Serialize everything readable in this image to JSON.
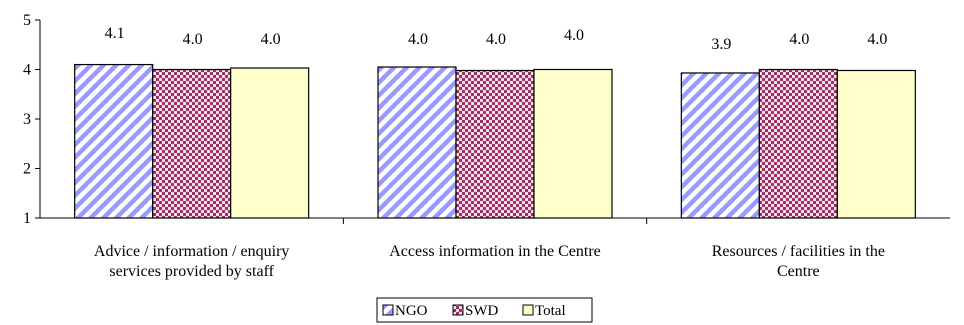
{
  "chart_data": {
    "type": "bar",
    "title": "",
    "xlabel": "",
    "ylabel": "",
    "ylim": [
      1,
      5
    ],
    "yticks": [
      "1",
      "2",
      "3",
      "4",
      "5"
    ],
    "grid": false,
    "legend_position": "bottom-center",
    "categories": [
      [
        "Advice / information / enquiry",
        "services provided by staff"
      ],
      [
        "Access information in the Centre"
      ],
      [
        "Resources / facilities in the",
        "Centre"
      ]
    ],
    "series": [
      {
        "name": "NGO",
        "values": [
          4.1,
          4.05,
          3.93
        ],
        "labels": [
          "4.1",
          "4.0",
          "3.9"
        ],
        "color": "#9999ff",
        "pattern": "diagonal-stripes"
      },
      {
        "name": "SWD",
        "values": [
          4.0,
          3.98,
          4.0
        ],
        "labels": [
          "4.0",
          "4.0",
          "4.0"
        ],
        "color": "#993366",
        "pattern": "dots"
      },
      {
        "name": "Total",
        "values": [
          4.03,
          4.0,
          3.98
        ],
        "labels": [
          "4.0",
          "4.0",
          "4.0"
        ],
        "color": "#ffffcc",
        "pattern": "solid"
      }
    ]
  }
}
